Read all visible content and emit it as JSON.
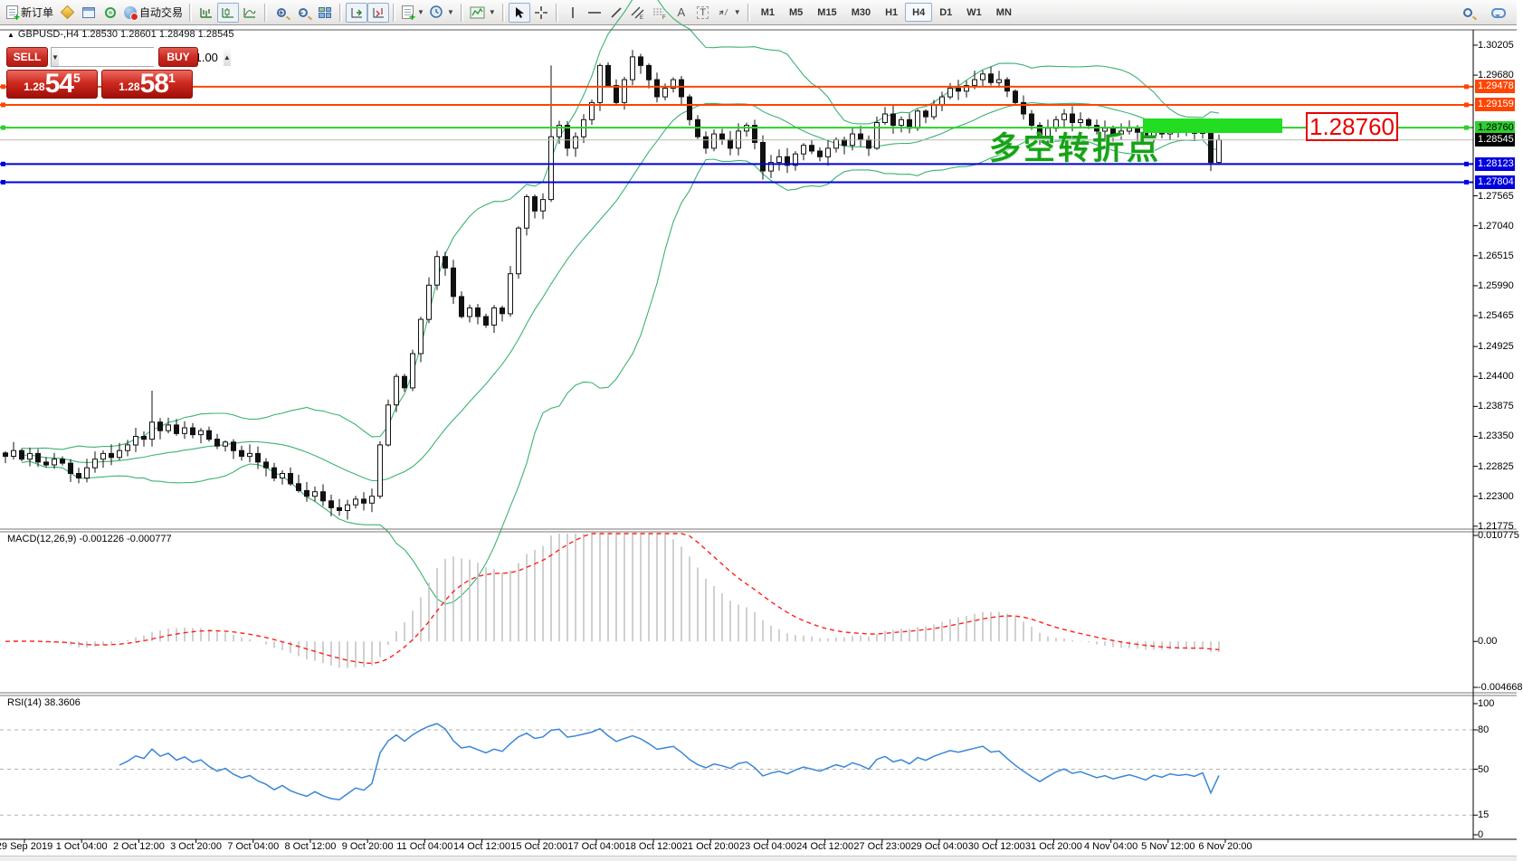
{
  "toolbar": {
    "new_order_label": "新订单",
    "autotrading_label": "自动交易",
    "timeframes": [
      "M1",
      "M5",
      "M15",
      "M30",
      "H1",
      "H4",
      "D1",
      "W1",
      "MN"
    ],
    "active_timeframe": "H4"
  },
  "chart_header": {
    "symbol_line": "GBPUSD-,H4 1.28530 1.28601 1.28498 1.28545"
  },
  "one_click": {
    "sell_label": "SELL",
    "buy_label": "BUY",
    "volume": "1.00",
    "sell_price_small": "1.28",
    "sell_price_big": "54",
    "sell_price_sup": "5",
    "buy_price_small": "1.28",
    "buy_price_big": "58",
    "buy_price_sup": "1"
  },
  "annotations": {
    "turning_point_text": "多空转折点",
    "turning_point_color": "#17a317",
    "highlight_rect_color": "#22dd22",
    "price_tag_text": "1.28760",
    "price_tag_color": "#e80000"
  },
  "chart_data": {
    "type": "candlestick",
    "title": "GBPUSD-,H4",
    "legend_position": "none",
    "grid": false,
    "main_pane": {
      "ylim": [
        1.21725,
        1.30474
      ],
      "price_axis_ticks": [
        1.30205,
        1.2968,
        1.27565,
        1.2704,
        1.26515,
        1.2599,
        1.25465,
        1.24925,
        1.244,
        1.23875,
        1.2335,
        1.22825,
        1.223,
        1.21775
      ],
      "current_price": 1.28545,
      "current_price_line_color": "#b8b8b8",
      "hlines": [
        {
          "price": 1.29478,
          "color": "#ff4500",
          "text_color": "#ffffff"
        },
        {
          "price": 1.29159,
          "color": "#ff4500",
          "text_color": "#ffffff"
        },
        {
          "price": 1.2876,
          "color": "#2fce2f",
          "text_color": "#000000"
        },
        {
          "price": 1.28123,
          "color": "#0000dd",
          "text_color": "#ffffff"
        },
        {
          "price": 1.27804,
          "color": "#0000dd",
          "text_color": "#ffffff"
        }
      ],
      "bollinger": {
        "period": 20,
        "deviation": 2,
        "color": "#3cb371"
      }
    },
    "candles": {
      "x_start": 6,
      "x_step": 9,
      "closes": [
        1.23,
        1.231,
        1.2295,
        1.2305,
        1.229,
        1.2285,
        1.2295,
        1.2288,
        1.227,
        1.2262,
        1.228,
        1.2295,
        1.2305,
        1.2298,
        1.231,
        1.232,
        1.2335,
        1.233,
        1.236,
        1.2345,
        1.2355,
        1.234,
        1.235,
        1.2338,
        1.2345,
        1.233,
        1.2318,
        1.2325,
        1.231,
        1.23,
        1.2305,
        1.229,
        1.228,
        1.2262,
        1.227,
        1.2252,
        1.224,
        1.223,
        1.2238,
        1.2222,
        1.221,
        1.2205,
        1.2215,
        1.2225,
        1.2218,
        1.223,
        1.232,
        1.239,
        1.244,
        1.242,
        1.248,
        1.254,
        1.26,
        1.265,
        1.263,
        1.258,
        1.2545,
        1.256,
        1.2545,
        1.253,
        1.256,
        1.255,
        1.262,
        1.27,
        1.2755,
        1.273,
        1.275,
        1.286,
        1.288,
        1.284,
        1.286,
        1.289,
        1.292,
        1.2985,
        1.295,
        1.292,
        1.296,
        1.3,
        1.2985,
        1.296,
        1.293,
        1.2945,
        1.296,
        1.293,
        1.289,
        1.286,
        1.284,
        1.2865,
        1.2855,
        1.284,
        1.287,
        1.288,
        1.285,
        1.28,
        1.2815,
        1.2825,
        1.281,
        1.283,
        1.2845,
        1.2835,
        1.2825,
        1.284,
        1.2855,
        1.2845,
        1.2865,
        1.2855,
        1.284,
        1.2885,
        1.29,
        1.288,
        1.289,
        1.2875,
        1.2905,
        1.2895,
        1.2915,
        1.293,
        1.2945,
        1.294,
        1.295,
        1.296,
        1.297,
        1.2955,
        1.296,
        1.294,
        1.292,
        1.29,
        1.288,
        1.286,
        1.2875,
        1.289,
        1.29,
        1.2885,
        1.289,
        1.288,
        1.287,
        1.2875,
        1.2865,
        1.287,
        1.2875,
        1.2868,
        1.286,
        1.287,
        1.2865,
        1.2872,
        1.2868,
        1.287,
        1.2866,
        1.2872,
        1.2815,
        1.28545
      ],
      "wick_overrides": {
        "8": {
          "l": 1.2255
        },
        "18": {
          "h": 1.2415
        },
        "41": {
          "l": 1.2196
        },
        "67": {
          "h": 1.2985
        },
        "77": {
          "h": 1.3012
        },
        "93": {
          "l": 1.2785
        },
        "148": {
          "l": 1.28
        }
      },
      "bull_color": "#ffffff",
      "bear_color": "#111111",
      "outline_color": "#111111"
    },
    "macd_pane": {
      "label": "MACD(12,26,9)",
      "values_text": "-0.001226 -0.000777",
      "params": [
        12,
        26,
        9
      ],
      "axis_ticks": [
        "0.010775",
        "0.00",
        "-0.004668"
      ],
      "ylim": [
        -0.004668,
        0.010775
      ],
      "histogram_color": "#c0c0c0",
      "signal_color": "#ff2020"
    },
    "rsi_pane": {
      "label": "RSI(14)",
      "value_text": "38.3606",
      "period": 14,
      "levels": [
        80,
        50,
        15
      ],
      "axis_ticks": [
        100,
        80,
        50,
        15,
        0
      ],
      "line_color": "#3a86d6",
      "level_color": "#b0b0b0"
    },
    "x_labels": [
      "29 Sep 2019",
      "1 Oct 04:00",
      "2 Oct 12:00",
      "3 Oct 20:00",
      "7 Oct 04:00",
      "8 Oct 12:00",
      "9 Oct 20:00",
      "11 Oct 04:00",
      "14 Oct 12:00",
      "15 Oct 20:00",
      "17 Oct 04:00",
      "18 Oct 12:00",
      "21 Oct 20:00",
      "23 Oct 04:00",
      "24 Oct 12:00",
      "27 Oct 23:00",
      "29 Oct 04:00",
      "30 Oct 12:00",
      "31 Oct 20:00",
      "4 Nov 04:00",
      "5 Nov 12:00",
      "6 Nov 20:00"
    ]
  }
}
